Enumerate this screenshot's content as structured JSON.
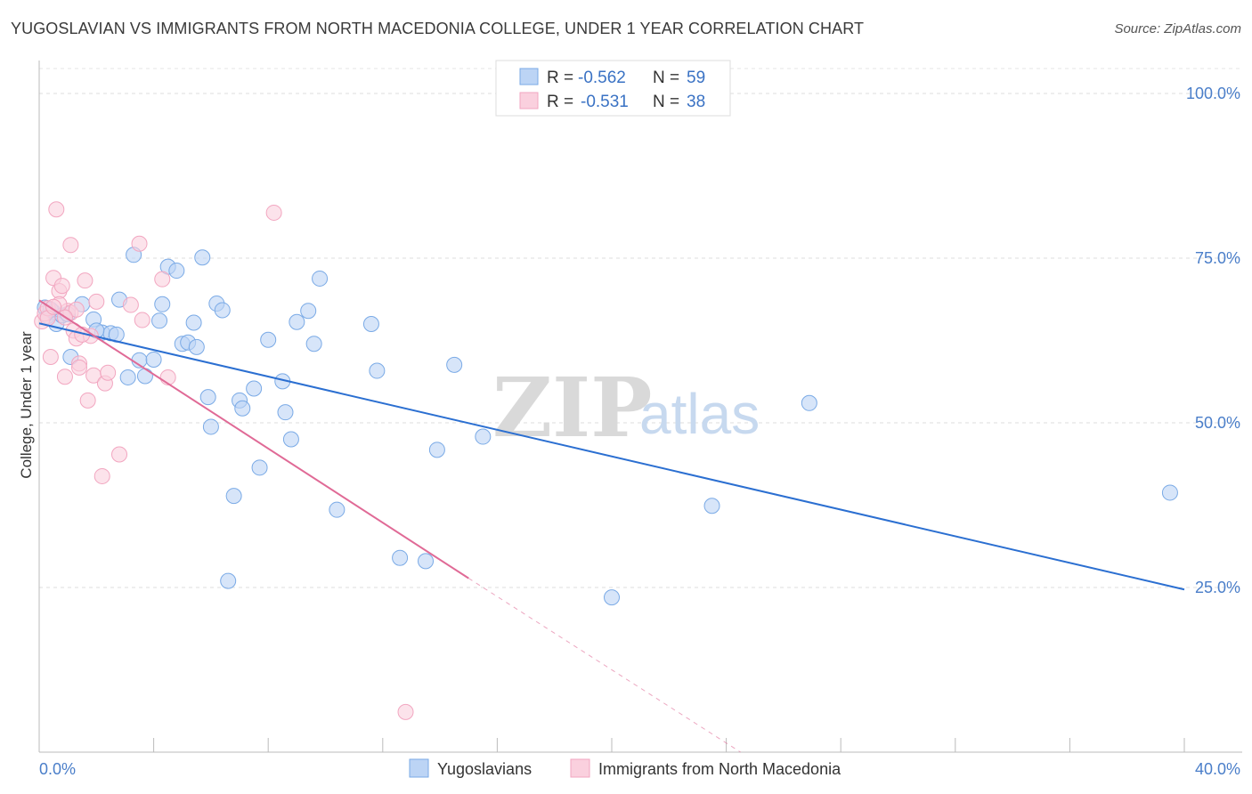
{
  "header": {
    "title": "YUGOSLAVIAN VS IMMIGRANTS FROM NORTH MACEDONIA COLLEGE, UNDER 1 YEAR CORRELATION CHART",
    "source": "Source: ZipAtlas.com"
  },
  "watermark": {
    "zip": "ZIP",
    "atlas": "atlas"
  },
  "legend": {
    "r_label": "R =",
    "n_label": "N =",
    "rows": [
      {
        "r": "-0.562",
        "n": "59"
      },
      {
        "r": "-0.531",
        "n": "38"
      }
    ]
  },
  "bottom_legend": {
    "items": [
      "Yugoslavians",
      "Immigrants from North Macedonia"
    ]
  },
  "chart_data": {
    "type": "scatter",
    "title": "YUGOSLAVIAN VS IMMIGRANTS FROM NORTH MACEDONIA COLLEGE, UNDER 1 YEAR CORRELATION CHART",
    "xlabel": "",
    "ylabel": "College, Under 1 year",
    "xlim": [
      0,
      40
    ],
    "ylim": [
      0,
      105
    ],
    "x_tick_labels": [
      "0.0%",
      "40.0%"
    ],
    "y_ticks": [
      25,
      50,
      75,
      100
    ],
    "y_tick_labels": [
      "25.0%",
      "50.0%",
      "75.0%",
      "100.0%"
    ],
    "grid": true,
    "colors": {
      "yugoslavians": "#7aaae6",
      "yugoslavians_line": "#2b6fd1",
      "macedonia": "#f2a6c0",
      "macedonia_line": "#e06a96",
      "axis_text": "#4a7ec9"
    },
    "series": [
      {
        "name": "Yugoslavians",
        "R": -0.562,
        "N": 59,
        "trend": {
          "x": [
            0,
            40
          ],
          "y": [
            65.1,
            24.7
          ]
        },
        "points": [
          [
            0.2,
            67.5
          ],
          [
            0.3,
            66.2
          ],
          [
            0.5,
            66.8
          ],
          [
            0.6,
            65.0
          ],
          [
            0.8,
            66.3
          ],
          [
            1.1,
            60.0
          ],
          [
            1.5,
            68.0
          ],
          [
            1.9,
            65.7
          ],
          [
            2.2,
            63.7
          ],
          [
            2.5,
            63.6
          ],
          [
            2.7,
            63.4
          ],
          [
            2.8,
            68.7
          ],
          [
            3.1,
            56.9
          ],
          [
            3.3,
            75.5
          ],
          [
            3.5,
            59.5
          ],
          [
            3.7,
            57.1
          ],
          [
            4.0,
            59.6
          ],
          [
            4.2,
            65.5
          ],
          [
            4.3,
            68.0
          ],
          [
            4.5,
            73.7
          ],
          [
            4.8,
            73.1
          ],
          [
            5.0,
            62.0
          ],
          [
            5.2,
            62.2
          ],
          [
            5.4,
            65.2
          ],
          [
            5.5,
            61.5
          ],
          [
            5.7,
            75.1
          ],
          [
            5.9,
            53.9
          ],
          [
            6.0,
            49.4
          ],
          [
            6.2,
            68.1
          ],
          [
            6.4,
            67.1
          ],
          [
            6.6,
            26.0
          ],
          [
            6.8,
            38.9
          ],
          [
            7.0,
            53.4
          ],
          [
            7.1,
            52.2
          ],
          [
            7.5,
            55.2
          ],
          [
            7.7,
            43.2
          ],
          [
            8.0,
            62.6
          ],
          [
            8.5,
            56.3
          ],
          [
            8.6,
            51.6
          ],
          [
            8.8,
            47.5
          ],
          [
            9.0,
            65.3
          ],
          [
            9.4,
            67.0
          ],
          [
            9.6,
            62.0
          ],
          [
            9.8,
            71.9
          ],
          [
            10.4,
            36.8
          ],
          [
            11.6,
            65.0
          ],
          [
            11.8,
            57.9
          ],
          [
            12.6,
            29.5
          ],
          [
            13.5,
            29.0
          ],
          [
            13.9,
            45.9
          ],
          [
            14.5,
            58.8
          ],
          [
            15.5,
            47.9
          ],
          [
            20.0,
            23.5
          ],
          [
            23.5,
            37.4
          ],
          [
            26.9,
            53.0
          ],
          [
            39.5,
            39.4
          ],
          [
            0.4,
            67.2
          ],
          [
            1.0,
            66.5
          ],
          [
            2.0,
            64.0
          ]
        ]
      },
      {
        "name": "Immigrants from North Macedonia",
        "R": -0.531,
        "N": 38,
        "trend": {
          "x": [
            0,
            15.0
          ],
          "y": [
            68.6,
            26.4
          ]
        },
        "trend_dashed": {
          "x": [
            15.0,
            24.5
          ],
          "y": [
            26.4,
            0
          ]
        },
        "points": [
          [
            0.1,
            65.4
          ],
          [
            0.2,
            66.6
          ],
          [
            0.3,
            67.4
          ],
          [
            0.4,
            60.0
          ],
          [
            0.5,
            72.0
          ],
          [
            0.6,
            82.4
          ],
          [
            0.7,
            70.0
          ],
          [
            0.8,
            70.8
          ],
          [
            0.9,
            57.0
          ],
          [
            1.0,
            67.0
          ],
          [
            1.1,
            66.7
          ],
          [
            1.1,
            77.0
          ],
          [
            1.2,
            64.0
          ],
          [
            1.3,
            62.8
          ],
          [
            1.4,
            59.0
          ],
          [
            1.4,
            58.4
          ],
          [
            1.6,
            71.6
          ],
          [
            1.7,
            53.4
          ],
          [
            1.8,
            63.2
          ],
          [
            1.9,
            57.2
          ],
          [
            2.0,
            68.4
          ],
          [
            2.2,
            41.9
          ],
          [
            2.3,
            56.0
          ],
          [
            2.4,
            57.6
          ],
          [
            2.8,
            45.2
          ],
          [
            3.2,
            67.9
          ],
          [
            3.5,
            77.2
          ],
          [
            3.6,
            65.6
          ],
          [
            4.3,
            71.8
          ],
          [
            4.5,
            56.9
          ],
          [
            8.2,
            81.9
          ],
          [
            12.8,
            6.1
          ],
          [
            0.3,
            65.9
          ],
          [
            0.7,
            68.0
          ],
          [
            1.3,
            67.2
          ],
          [
            0.5,
            67.6
          ],
          [
            0.9,
            66.0
          ],
          [
            1.5,
            63.4
          ]
        ]
      }
    ]
  }
}
